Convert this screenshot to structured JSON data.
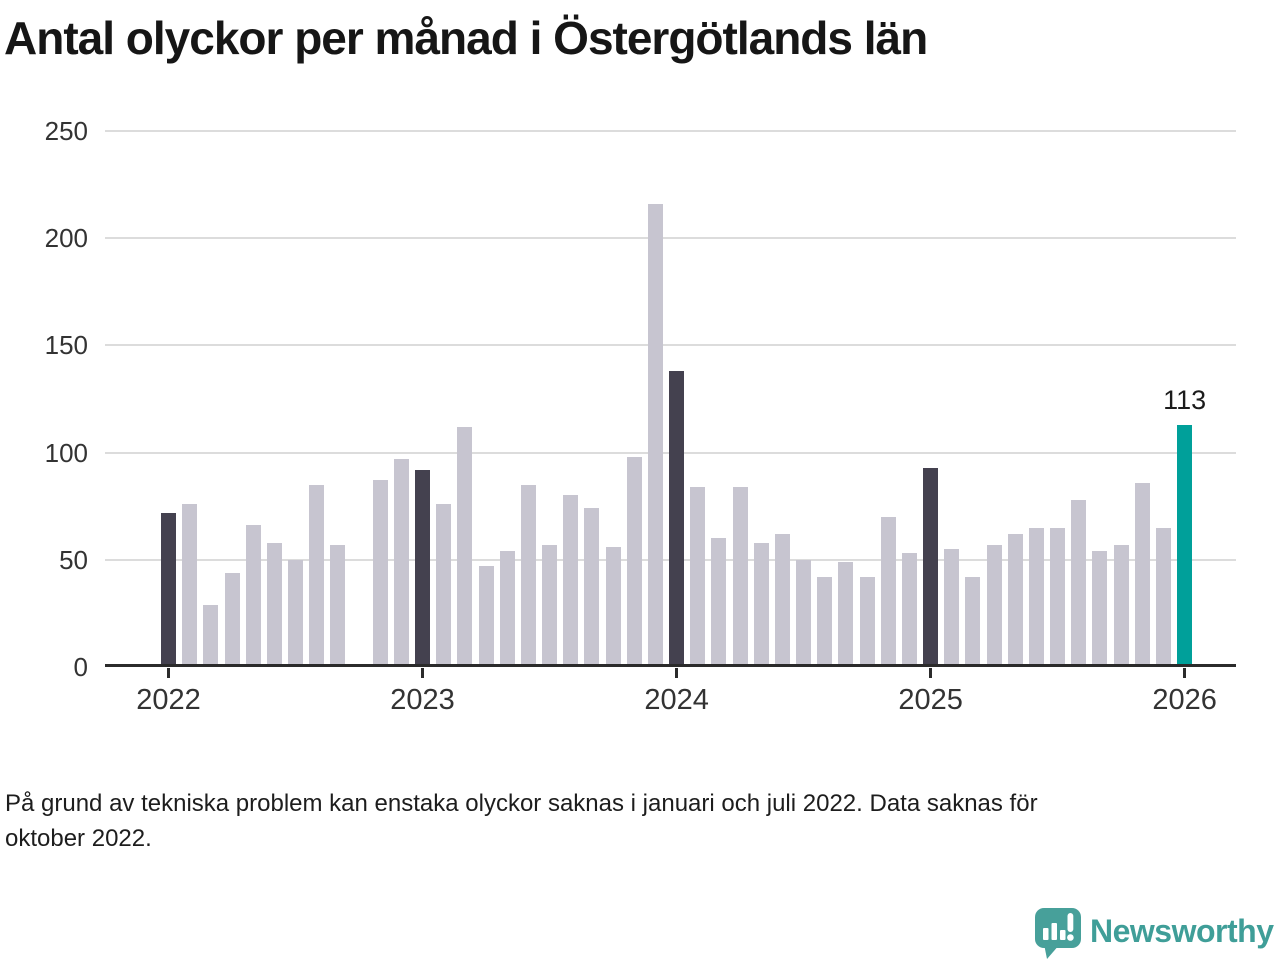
{
  "title": "Antal olyckor per månad i Östergötlands län",
  "footnote_lines": [
    "På grund av tekniska problem kan enstaka olyckor saknas i januari och juli 2022. Data saknas för",
    "oktober 2022."
  ],
  "logo": {
    "wordmark": "Newsworthy",
    "icon": "newsworthy-speech-bubble-bar-chart-icon"
  },
  "colors": {
    "january_bar": "#44414f",
    "month_bar": "#c7c5d0",
    "latest_bar": "#00a09a",
    "gridline": "#dcdcdc",
    "axis_line": "#2b2b2b",
    "axis_label": "#333333",
    "title_text": "#161616",
    "annotation_text": "#1c1c1c",
    "logo_teal": "#3f9e98"
  },
  "chart_data": {
    "type": "bar",
    "title": "Antal olyckor per månad i Östergötlands län",
    "xlabel": "",
    "ylabel": "",
    "ylim": [
      0,
      250
    ],
    "y_ticks": [
      0,
      50,
      100,
      150,
      200,
      250
    ],
    "x_tick_labels": [
      "2022",
      "2023",
      "2024",
      "2025",
      "2026"
    ],
    "grid": "horizontal",
    "legend": "none",
    "annotation": {
      "month": "2026-01",
      "text": "113"
    },
    "points": [
      {
        "month": "2022-01",
        "value": 72,
        "role": "january"
      },
      {
        "month": "2022-02",
        "value": 76,
        "role": "month"
      },
      {
        "month": "2022-03",
        "value": 29,
        "role": "month"
      },
      {
        "month": "2022-04",
        "value": 44,
        "role": "month"
      },
      {
        "month": "2022-05",
        "value": 66,
        "role": "month"
      },
      {
        "month": "2022-06",
        "value": 58,
        "role": "month"
      },
      {
        "month": "2022-07",
        "value": 50,
        "role": "month"
      },
      {
        "month": "2022-08",
        "value": 85,
        "role": "month"
      },
      {
        "month": "2022-09",
        "value": 57,
        "role": "month"
      },
      {
        "month": "2022-10",
        "value": null,
        "role": "missing"
      },
      {
        "month": "2022-11",
        "value": 87,
        "role": "month"
      },
      {
        "month": "2022-12",
        "value": 97,
        "role": "month"
      },
      {
        "month": "2023-01",
        "value": 92,
        "role": "january"
      },
      {
        "month": "2023-02",
        "value": 76,
        "role": "month"
      },
      {
        "month": "2023-03",
        "value": 112,
        "role": "month"
      },
      {
        "month": "2023-04",
        "value": 47,
        "role": "month"
      },
      {
        "month": "2023-05",
        "value": 54,
        "role": "month"
      },
      {
        "month": "2023-06",
        "value": 85,
        "role": "month"
      },
      {
        "month": "2023-07",
        "value": 57,
        "role": "month"
      },
      {
        "month": "2023-08",
        "value": 80,
        "role": "month"
      },
      {
        "month": "2023-09",
        "value": 74,
        "role": "month"
      },
      {
        "month": "2023-10",
        "value": 56,
        "role": "month"
      },
      {
        "month": "2023-11",
        "value": 98,
        "role": "month"
      },
      {
        "month": "2023-12",
        "value": 216,
        "role": "month"
      },
      {
        "month": "2024-01",
        "value": 138,
        "role": "january"
      },
      {
        "month": "2024-02",
        "value": 84,
        "role": "month"
      },
      {
        "month": "2024-03",
        "value": 60,
        "role": "month"
      },
      {
        "month": "2024-04",
        "value": 84,
        "role": "month"
      },
      {
        "month": "2024-05",
        "value": 58,
        "role": "month"
      },
      {
        "month": "2024-06",
        "value": 62,
        "role": "month"
      },
      {
        "month": "2024-07",
        "value": 50,
        "role": "month"
      },
      {
        "month": "2024-08",
        "value": 42,
        "role": "month"
      },
      {
        "month": "2024-09",
        "value": 49,
        "role": "month"
      },
      {
        "month": "2024-10",
        "value": 42,
        "role": "month"
      },
      {
        "month": "2024-11",
        "value": 70,
        "role": "month"
      },
      {
        "month": "2024-12",
        "value": 53,
        "role": "month"
      },
      {
        "month": "2025-01",
        "value": 93,
        "role": "january"
      },
      {
        "month": "2025-02",
        "value": 55,
        "role": "month"
      },
      {
        "month": "2025-03",
        "value": 42,
        "role": "month"
      },
      {
        "month": "2025-04",
        "value": 57,
        "role": "month"
      },
      {
        "month": "2025-05",
        "value": 62,
        "role": "month"
      },
      {
        "month": "2025-06",
        "value": 65,
        "role": "month"
      },
      {
        "month": "2025-07",
        "value": 65,
        "role": "month"
      },
      {
        "month": "2025-08",
        "value": 78,
        "role": "month"
      },
      {
        "month": "2025-09",
        "value": 54,
        "role": "month"
      },
      {
        "month": "2025-10",
        "value": 57,
        "role": "month"
      },
      {
        "month": "2025-11",
        "value": 86,
        "role": "month"
      },
      {
        "month": "2025-12",
        "value": 65,
        "role": "month"
      },
      {
        "month": "2026-01",
        "value": 113,
        "role": "latest"
      }
    ]
  }
}
